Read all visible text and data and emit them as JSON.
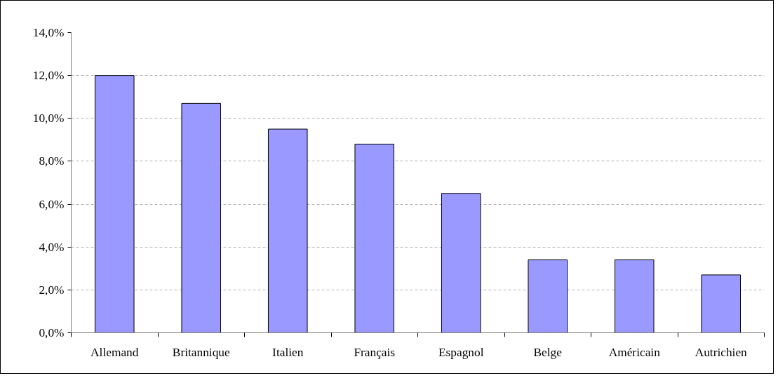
{
  "chart_data": {
    "type": "bar",
    "categories": [
      "Allemand",
      "Britannique",
      "Italien",
      "Français",
      "Espagnol",
      "Belge",
      "Américain",
      "Autrichien"
    ],
    "values": [
      12.0,
      10.7,
      9.5,
      8.8,
      6.5,
      3.4,
      3.4,
      2.7
    ],
    "color": "#9999ff",
    "ylim": [
      0,
      14
    ],
    "yticks": [
      {
        "value": 0,
        "label": "0,0%"
      },
      {
        "value": 2,
        "label": "2,0%"
      },
      {
        "value": 4,
        "label": "4,0%"
      },
      {
        "value": 6,
        "label": "6,0%"
      },
      {
        "value": 8,
        "label": "8,0%"
      },
      {
        "value": 10,
        "label": "10,0%"
      },
      {
        "value": 12,
        "label": "12,0%"
      },
      {
        "value": 14,
        "label": "14,0%"
      }
    ],
    "grid": "y"
  }
}
